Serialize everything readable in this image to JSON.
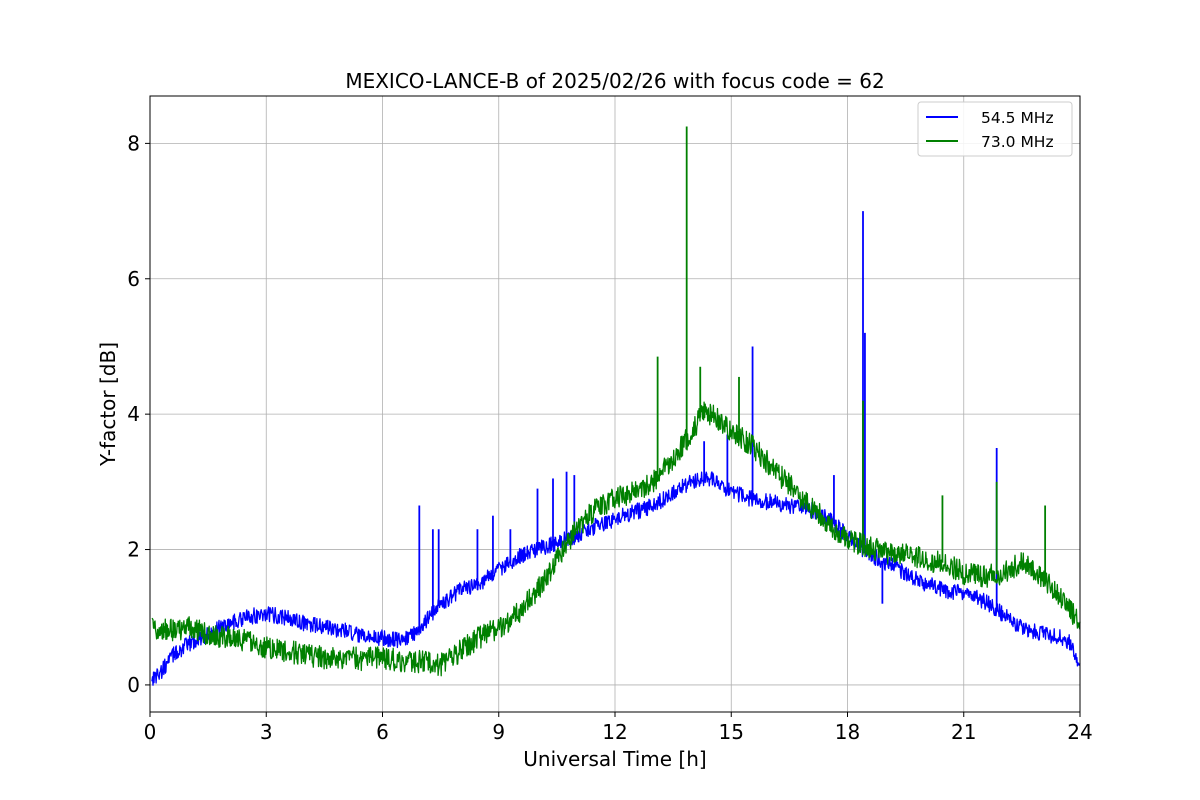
{
  "chart_data": {
    "type": "line",
    "title": "MEXICO-LANCE-B of 2025/02/26 with focus code = 62",
    "xlabel": "Universal Time [h]",
    "ylabel": "Y-factor [dB]",
    "xlim": [
      0,
      24
    ],
    "ylim": [
      -0.4,
      8.7
    ],
    "xticks": [
      0,
      3,
      6,
      9,
      12,
      15,
      18,
      21,
      24
    ],
    "xtick_labels": [
      "0",
      "3",
      "6",
      "9",
      "12",
      "15",
      "18",
      "21",
      "24"
    ],
    "yticks": [
      0,
      2,
      4,
      6,
      8
    ],
    "ytick_labels": [
      "0",
      "2",
      "4",
      "6",
      "8"
    ],
    "grid": true,
    "legend_position": "top-right",
    "series": [
      {
        "name": "54.5 MHz",
        "color": "#0000ff",
        "noise": 0.12,
        "x": [
          0.05,
          0.3,
          0.6,
          1.0,
          1.5,
          2.0,
          2.5,
          3.0,
          3.5,
          4.0,
          4.5,
          5.0,
          5.5,
          6.0,
          6.5,
          6.9,
          7.5,
          8.0,
          8.5,
          9.0,
          9.5,
          10.0,
          10.5,
          11.0,
          11.5,
          12.0,
          12.5,
          13.0,
          13.5,
          14.0,
          14.5,
          15.0,
          15.5,
          16.0,
          16.5,
          17.0,
          17.5,
          18.0,
          18.5,
          19.0,
          19.5,
          20.0,
          20.5,
          21.0,
          21.5,
          22.0,
          22.5,
          23.0,
          23.5,
          23.8,
          24.0
        ],
        "y": [
          0.1,
          0.2,
          0.45,
          0.6,
          0.75,
          0.9,
          1.0,
          1.05,
          1.0,
          0.9,
          0.85,
          0.8,
          0.7,
          0.7,
          0.65,
          0.8,
          1.2,
          1.4,
          1.5,
          1.7,
          1.9,
          2.0,
          2.1,
          2.2,
          2.35,
          2.45,
          2.55,
          2.65,
          2.85,
          3.0,
          3.05,
          2.85,
          2.75,
          2.7,
          2.65,
          2.6,
          2.45,
          2.2,
          1.95,
          1.8,
          1.65,
          1.5,
          1.4,
          1.35,
          1.25,
          1.05,
          0.85,
          0.75,
          0.72,
          0.6,
          0.25
        ],
        "spikes": [
          [
            6.95,
            2.65
          ],
          [
            7.3,
            2.3
          ],
          [
            7.45,
            2.3
          ],
          [
            8.45,
            2.3
          ],
          [
            8.85,
            2.5
          ],
          [
            9.3,
            2.3
          ],
          [
            10.0,
            2.9
          ],
          [
            10.4,
            3.05
          ],
          [
            10.75,
            3.15
          ],
          [
            10.95,
            3.1
          ],
          [
            14.3,
            3.6
          ],
          [
            14.9,
            3.7
          ],
          [
            15.55,
            5.0
          ],
          [
            17.65,
            3.1
          ],
          [
            18.4,
            7.0
          ],
          [
            18.45,
            5.2
          ],
          [
            18.9,
            1.2
          ],
          [
            21.85,
            3.5
          ]
        ]
      },
      {
        "name": "73.0 MHz",
        "color": "#008000",
        "noise": 0.17,
        "x": [
          0.05,
          0.5,
          1.0,
          1.5,
          2.0,
          2.5,
          3.0,
          3.5,
          4.0,
          4.5,
          5.0,
          5.5,
          6.0,
          6.5,
          7.0,
          7.5,
          8.0,
          8.5,
          9.0,
          9.5,
          10.0,
          10.5,
          11.0,
          11.5,
          12.0,
          12.5,
          13.0,
          13.5,
          14.0,
          14.3,
          14.6,
          15.0,
          15.5,
          16.0,
          16.5,
          17.0,
          17.5,
          18.0,
          18.5,
          19.0,
          19.5,
          20.0,
          20.5,
          21.0,
          21.5,
          22.0,
          22.5,
          23.0,
          23.5,
          24.0
        ],
        "y": [
          0.85,
          0.8,
          0.85,
          0.75,
          0.7,
          0.65,
          0.55,
          0.5,
          0.45,
          0.4,
          0.4,
          0.38,
          0.4,
          0.35,
          0.35,
          0.3,
          0.5,
          0.7,
          0.85,
          1.05,
          1.4,
          1.85,
          2.3,
          2.6,
          2.75,
          2.85,
          3.0,
          3.35,
          3.75,
          4.05,
          3.95,
          3.75,
          3.55,
          3.25,
          2.95,
          2.65,
          2.4,
          2.15,
          2.05,
          1.95,
          1.95,
          1.85,
          1.8,
          1.65,
          1.6,
          1.65,
          1.8,
          1.6,
          1.3,
          0.9
        ],
        "spikes": [
          [
            13.1,
            4.85
          ],
          [
            13.85,
            8.25
          ],
          [
            14.2,
            4.7
          ],
          [
            15.2,
            4.55
          ],
          [
            18.4,
            4.2
          ],
          [
            20.45,
            2.8
          ],
          [
            21.85,
            3.0
          ],
          [
            23.1,
            2.65
          ]
        ]
      }
    ]
  }
}
